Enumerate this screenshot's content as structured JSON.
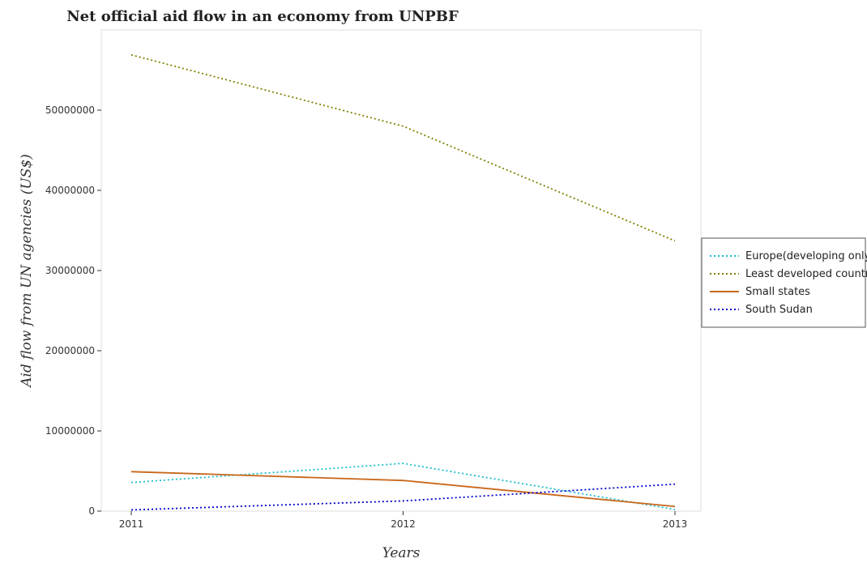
{
  "chart_data": {
    "type": "line",
    "title": "Net official aid flow in an economy from UNPBF",
    "xlabel": "Years",
    "ylabel": "Aid flow from UN agencies (US$)",
    "x": [
      "2011",
      "2012",
      "2013"
    ],
    "ylim": [
      0,
      60000000
    ],
    "yticks": [
      0,
      10000000,
      20000000,
      30000000,
      40000000,
      50000000
    ],
    "ytick_labels": [
      "0",
      "10000000",
      "20000000",
      "30000000",
      "40000000",
      "50000000"
    ],
    "grid": false,
    "legend_position": "right",
    "series": [
      {
        "name": "Europe(developing only)",
        "color": "#17becf",
        "dash": "2,3",
        "values": [
          3570000,
          5950000,
          200000
        ]
      },
      {
        "name": "Least developed countries",
        "color": "#808000",
        "dash": "2,3",
        "values": [
          56900000,
          48000000,
          33700000
        ]
      },
      {
        "name": "Small states",
        "color": "#c8671b",
        "dash": "",
        "values": [
          4920000,
          3820000,
          580000
        ]
      },
      {
        "name": "South Sudan",
        "color": "#0000cd",
        "dash": "2,3",
        "values": [
          150000,
          1270000,
          3360000
        ]
      }
    ]
  }
}
